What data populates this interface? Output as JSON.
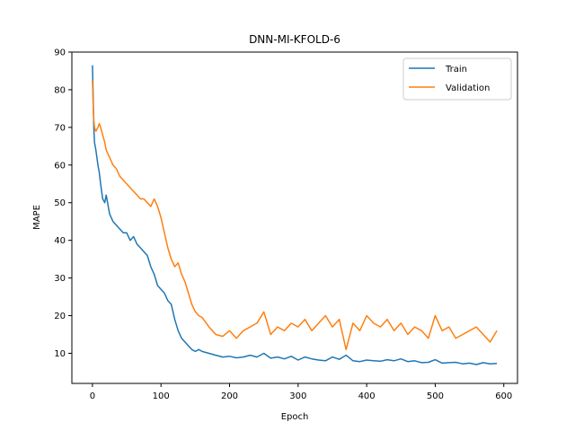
{
  "chart_data": {
    "type": "line",
    "title": "DNN-MI-KFOLD-6",
    "xlabel": "Epoch",
    "ylabel": "MAPE",
    "xlim": [
      -30,
      620
    ],
    "ylim": [
      2,
      90
    ],
    "xticks": [
      0,
      100,
      200,
      300,
      400,
      500,
      600
    ],
    "yticks": [
      10,
      20,
      30,
      40,
      50,
      60,
      70,
      80,
      90
    ],
    "grid": false,
    "legend_position": "top-right",
    "series": [
      {
        "name": "Train",
        "color": "#1f77b4",
        "x": [
          0,
          1,
          2,
          3,
          5,
          8,
          10,
          12,
          15,
          18,
          20,
          25,
          30,
          35,
          40,
          45,
          50,
          55,
          60,
          65,
          70,
          75,
          80,
          85,
          90,
          95,
          100,
          105,
          110,
          115,
          120,
          125,
          130,
          135,
          140,
          145,
          150,
          155,
          160,
          170,
          180,
          190,
          200,
          210,
          220,
          230,
          240,
          250,
          260,
          270,
          280,
          290,
          300,
          310,
          320,
          330,
          340,
          350,
          360,
          370,
          380,
          390,
          400,
          410,
          420,
          430,
          440,
          450,
          460,
          470,
          480,
          490,
          500,
          510,
          520,
          530,
          540,
          550,
          560,
          570,
          580,
          590
        ],
        "y": [
          86.5,
          78,
          70,
          66,
          64,
          60,
          58,
          55,
          51,
          50,
          52,
          47,
          45,
          44,
          43,
          42,
          42,
          40,
          41,
          39,
          38,
          37,
          36,
          33,
          31,
          28,
          27,
          26,
          24,
          23,
          19,
          16,
          14,
          13,
          12,
          11,
          10.5,
          11,
          10.5,
          10,
          9.5,
          9,
          9.2,
          8.8,
          9,
          9.5,
          9,
          10,
          8.7,
          9,
          8.5,
          9.2,
          8.2,
          9,
          8.5,
          8.2,
          8,
          9,
          8.4,
          9.5,
          8,
          7.8,
          8.2,
          8,
          7.9,
          8.3,
          8,
          8.5,
          7.8,
          8,
          7.5,
          7.6,
          8.3,
          7.4,
          7.5,
          7.6,
          7.2,
          7.4,
          7,
          7.5,
          7.2,
          7.3
        ]
      },
      {
        "name": "Validation",
        "color": "#ff7f0e",
        "x": [
          0,
          1,
          2,
          3,
          5,
          8,
          10,
          12,
          15,
          18,
          20,
          25,
          30,
          35,
          40,
          45,
          50,
          55,
          60,
          65,
          70,
          75,
          80,
          85,
          90,
          95,
          100,
          105,
          110,
          115,
          120,
          125,
          130,
          135,
          140,
          145,
          150,
          155,
          160,
          170,
          180,
          190,
          200,
          210,
          220,
          230,
          240,
          250,
          260,
          270,
          280,
          290,
          300,
          310,
          320,
          330,
          340,
          350,
          360,
          370,
          380,
          390,
          400,
          410,
          420,
          430,
          440,
          450,
          460,
          470,
          480,
          490,
          500,
          510,
          520,
          530,
          540,
          550,
          560,
          570,
          580,
          590
        ],
        "y": [
          82.5,
          76,
          72,
          70,
          69,
          70,
          71,
          70,
          68,
          66,
          64,
          62,
          60,
          59,
          57,
          56,
          55,
          54,
          53,
          52,
          51,
          51,
          50,
          49,
          51,
          49,
          46,
          42,
          38,
          35,
          33,
          34,
          31,
          29,
          26,
          23,
          21,
          20,
          19.5,
          17,
          15,
          14.5,
          16,
          14,
          16,
          17,
          18,
          21,
          15,
          17,
          16,
          18,
          17,
          19,
          16,
          18,
          20,
          17,
          19,
          11,
          18,
          16,
          20,
          18,
          17,
          19,
          16,
          18,
          15,
          17,
          16,
          14,
          20,
          16,
          17,
          14,
          15,
          16,
          17,
          15,
          13,
          16
        ]
      }
    ]
  }
}
